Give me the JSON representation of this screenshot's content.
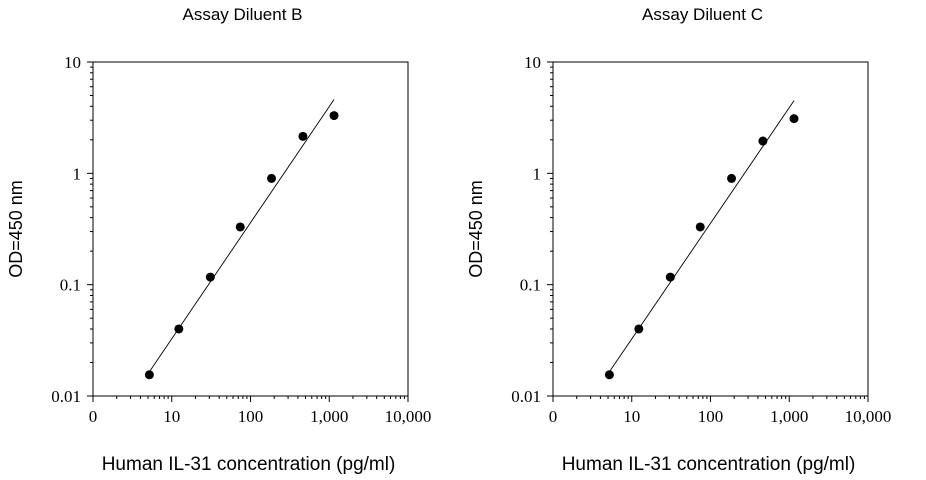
{
  "chart_data": [
    {
      "type": "scatter",
      "title": "Assay Diluent B",
      "xlabel": "Human IL-31 concentration (pg/ml)",
      "ylabel": "OD=450 nm",
      "x_scale": "log",
      "y_scale": "log",
      "xlim": [
        1,
        10000
      ],
      "ylim": [
        0.01,
        10
      ],
      "x_tick_labels": [
        "0",
        "10",
        "100",
        "1,000",
        "10,000"
      ],
      "y_tick_labels": [
        "0.01",
        "0.1",
        "1",
        "10"
      ],
      "grid": false,
      "series": [
        {
          "x": [
            5.2,
            12.3,
            30.9,
            74.1,
            185,
            463,
            1150
          ],
          "y": [
            0.0155,
            0.04,
            0.117,
            0.33,
            0.9,
            2.15,
            3.3
          ]
        }
      ],
      "fit_line": {
        "x": [
          5.2,
          1150
        ],
        "y": [
          0.0165,
          4.6
        ]
      }
    },
    {
      "type": "scatter",
      "title": "Assay Diluent C",
      "xlabel": "Human IL-31 concentration (pg/ml)",
      "ylabel": "OD=450 nm",
      "x_scale": "log",
      "y_scale": "log",
      "xlim": [
        1,
        10000
      ],
      "ylim": [
        0.01,
        10
      ],
      "x_tick_labels": [
        "0",
        "10",
        "100",
        "1,000",
        "10,000"
      ],
      "y_tick_labels": [
        "0.01",
        "0.1",
        "1",
        "10"
      ],
      "grid": false,
      "series": [
        {
          "x": [
            5.2,
            12.3,
            30.9,
            74.1,
            185,
            463,
            1150
          ],
          "y": [
            0.0155,
            0.04,
            0.117,
            0.33,
            0.9,
            1.95,
            3.1
          ]
        }
      ],
      "fit_line": {
        "x": [
          5.2,
          1150
        ],
        "y": [
          0.0165,
          4.5
        ]
      }
    }
  ]
}
